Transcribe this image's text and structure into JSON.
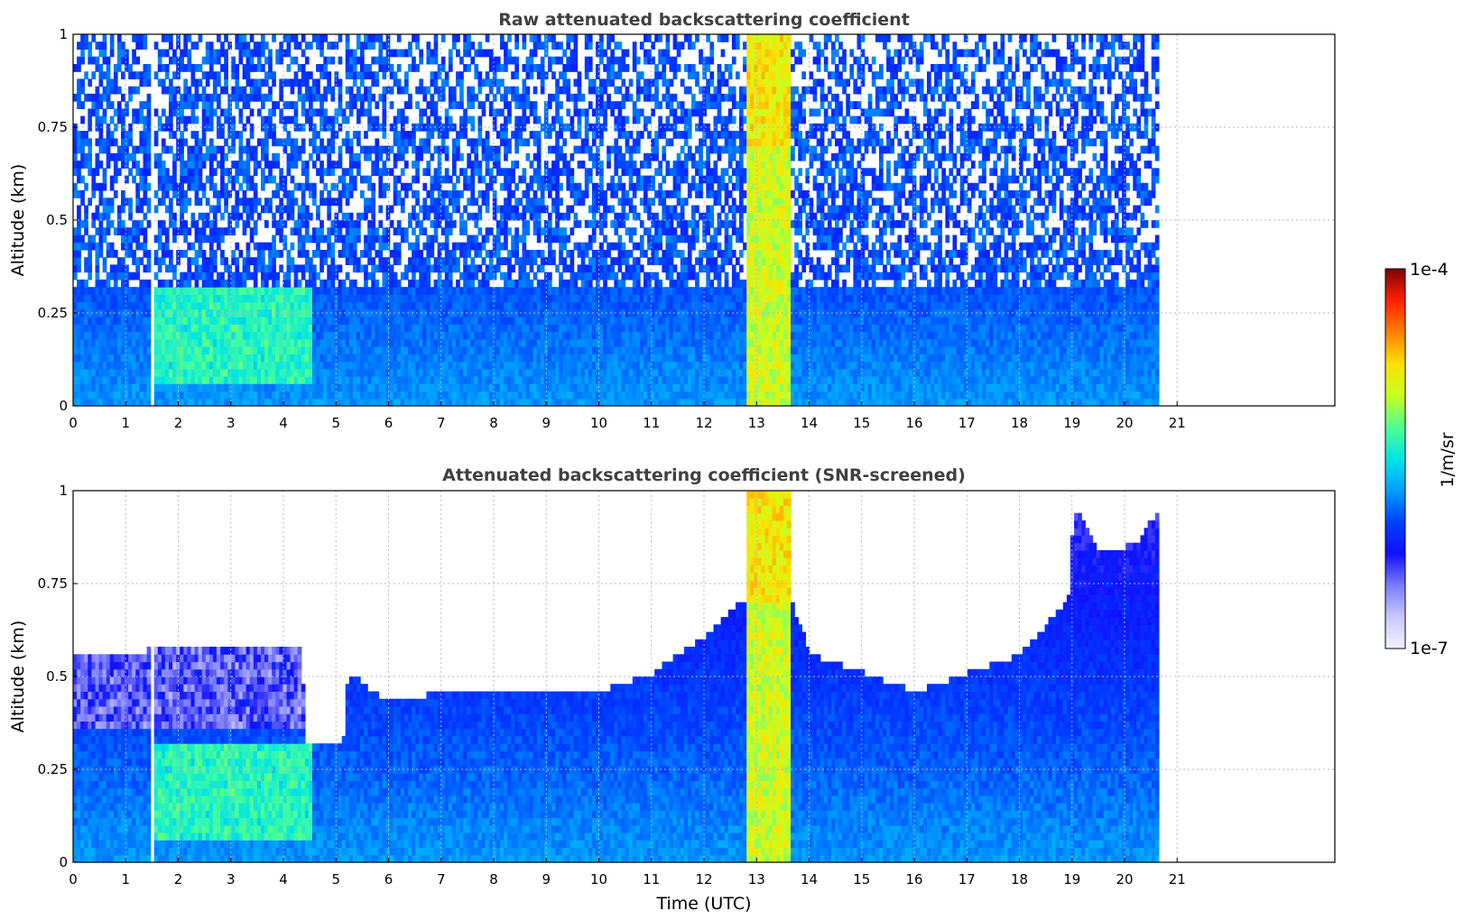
{
  "colors": {
    "title": "#404040",
    "grid": "#b8b8b8",
    "colormap": [
      "#f2f2ff",
      "#c8c8ff",
      "#7a7aff",
      "#1010ff",
      "#0040ff",
      "#00a0ff",
      "#00e5e5",
      "#50ff90",
      "#c8ff20",
      "#ffe000",
      "#ff8000",
      "#ff2000",
      "#800000"
    ]
  },
  "colorbar": {
    "min_label": "1e-7",
    "max_label": "1e-4",
    "unit_label": "1/m/sr",
    "scale": "log"
  },
  "chart_data": [
    {
      "type": "heatmap",
      "title": "Raw attenuated backscattering coefficient",
      "xlabel": "",
      "ylabel": "Altitude (km)",
      "xlim": [
        0,
        24
      ],
      "ylim": [
        0,
        1
      ],
      "xticks": [
        "0",
        "1",
        "2",
        "3",
        "4",
        "5",
        "6",
        "7",
        "8",
        "9",
        "10",
        "11",
        "12",
        "13",
        "14",
        "15",
        "16",
        "17",
        "18",
        "19",
        "20",
        "21"
      ],
      "yticks": [
        "0",
        "0.25",
        "0.5",
        "0.75",
        "1"
      ],
      "grid": true,
      "data_extent_hours": [
        0,
        20.65
      ],
      "gaps_hours": [
        [
          1.42,
          1.52
        ]
      ],
      "features": [
        {
          "name": "low-level aerosol layer",
          "x_range": [
            1.5,
            4.5
          ],
          "y_range": [
            0.05,
            0.3
          ],
          "level": "mid"
        },
        {
          "name": "cloud/rain column",
          "x_range": [
            12.75,
            13.6
          ],
          "y_range": [
            0,
            1
          ],
          "level": "high"
        }
      ]
    },
    {
      "type": "heatmap",
      "title": "Attenuated backscattering coefficient (SNR-screened)",
      "xlabel": "Time (UTC)",
      "ylabel": "Altitude (km)",
      "xlim": [
        0,
        24
      ],
      "ylim": [
        0,
        1
      ],
      "xticks": [
        "0",
        "1",
        "2",
        "3",
        "4",
        "5",
        "6",
        "7",
        "8",
        "9",
        "10",
        "11",
        "12",
        "13",
        "14",
        "15",
        "16",
        "17",
        "18",
        "19",
        "20",
        "21"
      ],
      "yticks": [
        "0",
        "0.25",
        "0.5",
        "0.75",
        "1"
      ],
      "grid": true,
      "data_extent_hours": [
        0,
        20.65
      ],
      "gaps_hours": [
        [
          1.42,
          1.52
        ]
      ],
      "boundary_layer_top_km": [
        [
          0,
          0.55
        ],
        [
          1,
          0.55
        ],
        [
          2,
          0.58
        ],
        [
          3,
          0.58
        ],
        [
          4,
          0.58
        ],
        [
          4.3,
          0.58
        ],
        [
          4.4,
          0.3
        ],
        [
          5.1,
          0.3
        ],
        [
          5.2,
          0.5
        ],
        [
          6,
          0.42
        ],
        [
          7,
          0.45
        ],
        [
          8,
          0.45
        ],
        [
          9,
          0.45
        ],
        [
          10,
          0.45
        ],
        [
          11,
          0.5
        ],
        [
          12,
          0.6
        ],
        [
          12.75,
          0.7
        ],
        [
          13.6,
          0.7
        ],
        [
          14,
          0.55
        ],
        [
          15,
          0.5
        ],
        [
          16,
          0.45
        ],
        [
          17,
          0.5
        ],
        [
          18,
          0.55
        ],
        [
          18.9,
          0.7
        ],
        [
          19,
          0.95
        ],
        [
          19.5,
          0.82
        ],
        [
          20.2,
          0.85
        ],
        [
          20.65,
          0.95
        ]
      ],
      "features": [
        {
          "name": "low-level aerosol layer",
          "x_range": [
            1.5,
            4.5
          ],
          "y_range": [
            0.05,
            0.3
          ],
          "level": "mid"
        },
        {
          "name": "cloud/rain column",
          "x_range": [
            12.75,
            13.6
          ],
          "y_range": [
            0,
            1
          ],
          "level": "high"
        }
      ]
    }
  ]
}
